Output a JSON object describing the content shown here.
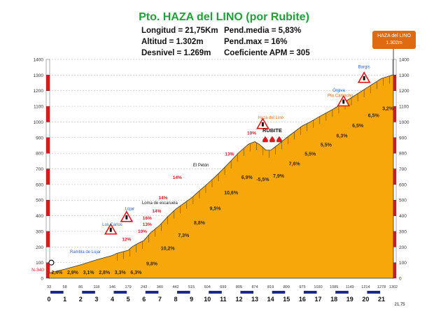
{
  "title": "Pto. HAZA del LINO (por Rubite)",
  "stats": {
    "longitud": "Longitud = 21,75Km",
    "altitud": "Altitud = 1.302m",
    "desnivel": "Desnivel = 1.269m",
    "pend_media": "Pend.media = 5,83%",
    "pend_max": "Pend.max = 16%",
    "coef": "Coeficiente APM = 305"
  },
  "summit_badge": {
    "name": "HAZA del LINO",
    "alt": "1.302m"
  },
  "colors": {
    "fill": "#f7a70a",
    "outline": "#333333",
    "title": "#1fa23a",
    "slope": "#e8141b",
    "badge": "#e06a10",
    "km_bar": "#1a2a8a",
    "gridline": "#b0b0b0"
  },
  "chart_data": {
    "type": "area",
    "xlabel": "",
    "ylabel": "",
    "xlim": [
      0,
      21.75
    ],
    "ylim": [
      0,
      1400
    ],
    "y_ticks": [
      0,
      100,
      200,
      300,
      400,
      500,
      600,
      700,
      800,
      900,
      1000,
      1100,
      1200,
      1300,
      1400
    ],
    "x_ticks": [
      {
        "x": 0,
        "label": "0"
      },
      {
        "x": 1,
        "label": "1"
      },
      {
        "x": 2,
        "label": "2"
      },
      {
        "x": 3,
        "label": "3"
      },
      {
        "x": 4,
        "label": "4"
      },
      {
        "x": 5,
        "label": "5"
      },
      {
        "x": 6,
        "label": "6"
      },
      {
        "x": 7,
        "label": "7"
      },
      {
        "x": 8,
        "label": "8"
      },
      {
        "x": 9,
        "label": "9"
      },
      {
        "x": 10,
        "label": "10"
      },
      {
        "x": 11,
        "label": "11"
      },
      {
        "x": 12,
        "label": "12"
      },
      {
        "x": 13,
        "label": "13"
      },
      {
        "x": 14,
        "label": "14"
      },
      {
        "x": 15,
        "label": "15"
      },
      {
        "x": 16,
        "label": "16"
      },
      {
        "x": 17,
        "label": "17"
      },
      {
        "x": 18,
        "label": "18"
      },
      {
        "x": 19,
        "label": "19"
      },
      {
        "x": 20,
        "label": "20"
      },
      {
        "x": 21,
        "label": "21"
      },
      {
        "x": 21.75,
        "label": "21,75"
      }
    ],
    "altitudes": [
      {
        "x": 0,
        "label": "33"
      },
      {
        "x": 1,
        "label": "58"
      },
      {
        "x": 2,
        "label": "86"
      },
      {
        "x": 3,
        "label": "118"
      },
      {
        "x": 4,
        "label": "146"
      },
      {
        "x": 5,
        "label": "179"
      },
      {
        "x": 6,
        "label": "242"
      },
      {
        "x": 7,
        "label": "340"
      },
      {
        "x": 8,
        "label": "442"
      },
      {
        "x": 9,
        "label": "515"
      },
      {
        "x": 10,
        "label": "604"
      },
      {
        "x": 11,
        "label": "699"
      },
      {
        "x": 12,
        "label": "805"
      },
      {
        "x": 13,
        "label": "874"
      },
      {
        "x": 14,
        "label": "819"
      },
      {
        "x": 15,
        "label": "899"
      },
      {
        "x": 16,
        "label": "975"
      },
      {
        "x": 17,
        "label": "1030"
      },
      {
        "x": 18,
        "label": "1085"
      },
      {
        "x": 19,
        "label": "1149"
      },
      {
        "x": 20,
        "label": "1214"
      },
      {
        "x": 21,
        "label": "1278"
      },
      {
        "x": 21.75,
        "label": "1302"
      }
    ],
    "profile": [
      {
        "x": 0,
        "y": 33
      },
      {
        "x": 1,
        "y": 58
      },
      {
        "x": 2,
        "y": 86
      },
      {
        "x": 3,
        "y": 118
      },
      {
        "x": 4,
        "y": 146
      },
      {
        "x": 4.3,
        "y": 160
      },
      {
        "x": 5,
        "y": 179
      },
      {
        "x": 5.3,
        "y": 205
      },
      {
        "x": 5.6,
        "y": 222
      },
      {
        "x": 6,
        "y": 242
      },
      {
        "x": 6.4,
        "y": 290
      },
      {
        "x": 7,
        "y": 340
      },
      {
        "x": 7.5,
        "y": 395
      },
      {
        "x": 8,
        "y": 442
      },
      {
        "x": 9,
        "y": 515
      },
      {
        "x": 9.5,
        "y": 560
      },
      {
        "x": 10,
        "y": 604
      },
      {
        "x": 10.5,
        "y": 650
      },
      {
        "x": 11,
        "y": 699
      },
      {
        "x": 12,
        "y": 805
      },
      {
        "x": 12.6,
        "y": 858
      },
      {
        "x": 13,
        "y": 874
      },
      {
        "x": 13.3,
        "y": 855
      },
      {
        "x": 13.7,
        "y": 820
      },
      {
        "x": 14,
        "y": 819
      },
      {
        "x": 14.4,
        "y": 850
      },
      {
        "x": 15,
        "y": 899
      },
      {
        "x": 16,
        "y": 975
      },
      {
        "x": 16.5,
        "y": 1000
      },
      {
        "x": 17,
        "y": 1030
      },
      {
        "x": 18,
        "y": 1085
      },
      {
        "x": 19,
        "y": 1149
      },
      {
        "x": 20,
        "y": 1214
      },
      {
        "x": 21,
        "y": 1278
      },
      {
        "x": 21.75,
        "y": 1302
      }
    ],
    "segment_gradients": [
      {
        "x": 0.5,
        "label": "2,4%"
      },
      {
        "x": 1.5,
        "label": "2,9%"
      },
      {
        "x": 2.5,
        "label": "3,1%"
      },
      {
        "x": 3.5,
        "label": "2,8%"
      },
      {
        "x": 4.5,
        "label": "3,3%"
      },
      {
        "x": 5.5,
        "label": "6,3%"
      },
      {
        "x": 6.5,
        "label": "9,8%"
      },
      {
        "x": 7.5,
        "label": "10,2%"
      },
      {
        "x": 8.5,
        "label": "7,3%"
      },
      {
        "x": 9.5,
        "label": "8,8%"
      },
      {
        "x": 10.5,
        "label": "9,5%"
      },
      {
        "x": 11.5,
        "label": "10,6%"
      },
      {
        "x": 12.5,
        "label": "6,9%"
      },
      {
        "x": 13.5,
        "label": "-5,5%"
      },
      {
        "x": 14.5,
        "label": "7,9%"
      },
      {
        "x": 15.5,
        "label": "7,6%"
      },
      {
        "x": 16.5,
        "label": "5,5%"
      },
      {
        "x": 17.5,
        "label": "5,5%"
      },
      {
        "x": 18.5,
        "label": "6,3%"
      },
      {
        "x": 19.5,
        "label": "6,5%"
      },
      {
        "x": 20.5,
        "label": "6,5%"
      },
      {
        "x": 21.4,
        "label": "3,2%"
      }
    ],
    "max_slopes": [
      {
        "x": 4.9,
        "y": 240,
        "label": "12%"
      },
      {
        "x": 5.9,
        "y": 290,
        "label": "10%"
      },
      {
        "x": 6.2,
        "y": 335,
        "label": "13%"
      },
      {
        "x": 6.2,
        "y": 375,
        "label": "16%"
      },
      {
        "x": 6.8,
        "y": 420,
        "label": "14%"
      },
      {
        "x": 7.2,
        "y": 505,
        "label": "14%"
      },
      {
        "x": 8.1,
        "y": 635,
        "label": "14%"
      },
      {
        "x": 11.4,
        "y": 785,
        "label": "13%"
      },
      {
        "x": 12.8,
        "y": 920,
        "label": "10%"
      }
    ],
    "places": [
      {
        "x": 2.3,
        "y": 160,
        "label": "Rambla de Lújar",
        "color": "#2b62c8"
      },
      {
        "x": 4.0,
        "y": 335,
        "label": "Los Carlos",
        "color": "#2b62c8"
      },
      {
        "x": 5.1,
        "y": 435,
        "label": "Lújar",
        "color": "#2b62c8"
      },
      {
        "x": 7.0,
        "y": 475,
        "label": "Loma de escaruela",
        "color": "#111111"
      },
      {
        "x": 9.6,
        "y": 715,
        "label": "El Petón",
        "color": "#111111"
      },
      {
        "x": 14.0,
        "y": 1020,
        "label": "Haza del Lino",
        "color": "#e06a10"
      },
      {
        "x": 18.3,
        "y": 1195,
        "label": "Órgiva",
        "color": "#2b62c8"
      },
      {
        "x": 18.4,
        "y": 1160,
        "label": "Pto.Camacho",
        "color": "#e06a10"
      },
      {
        "x": 19.9,
        "y": 1345,
        "label": "Bargis",
        "color": "#2b62c8"
      }
    ],
    "town": {
      "x": 14.1,
      "y": 930,
      "label": "RUBITE"
    },
    "road_label": "N-340",
    "warnings": [
      {
        "x": 3.9,
        "y": 310
      },
      {
        "x": 4.9,
        "y": 390
      },
      {
        "x": 13.5,
        "y": 985
      },
      {
        "x": 18.6,
        "y": 1130
      },
      {
        "x": 19.9,
        "y": 1280
      }
    ]
  }
}
